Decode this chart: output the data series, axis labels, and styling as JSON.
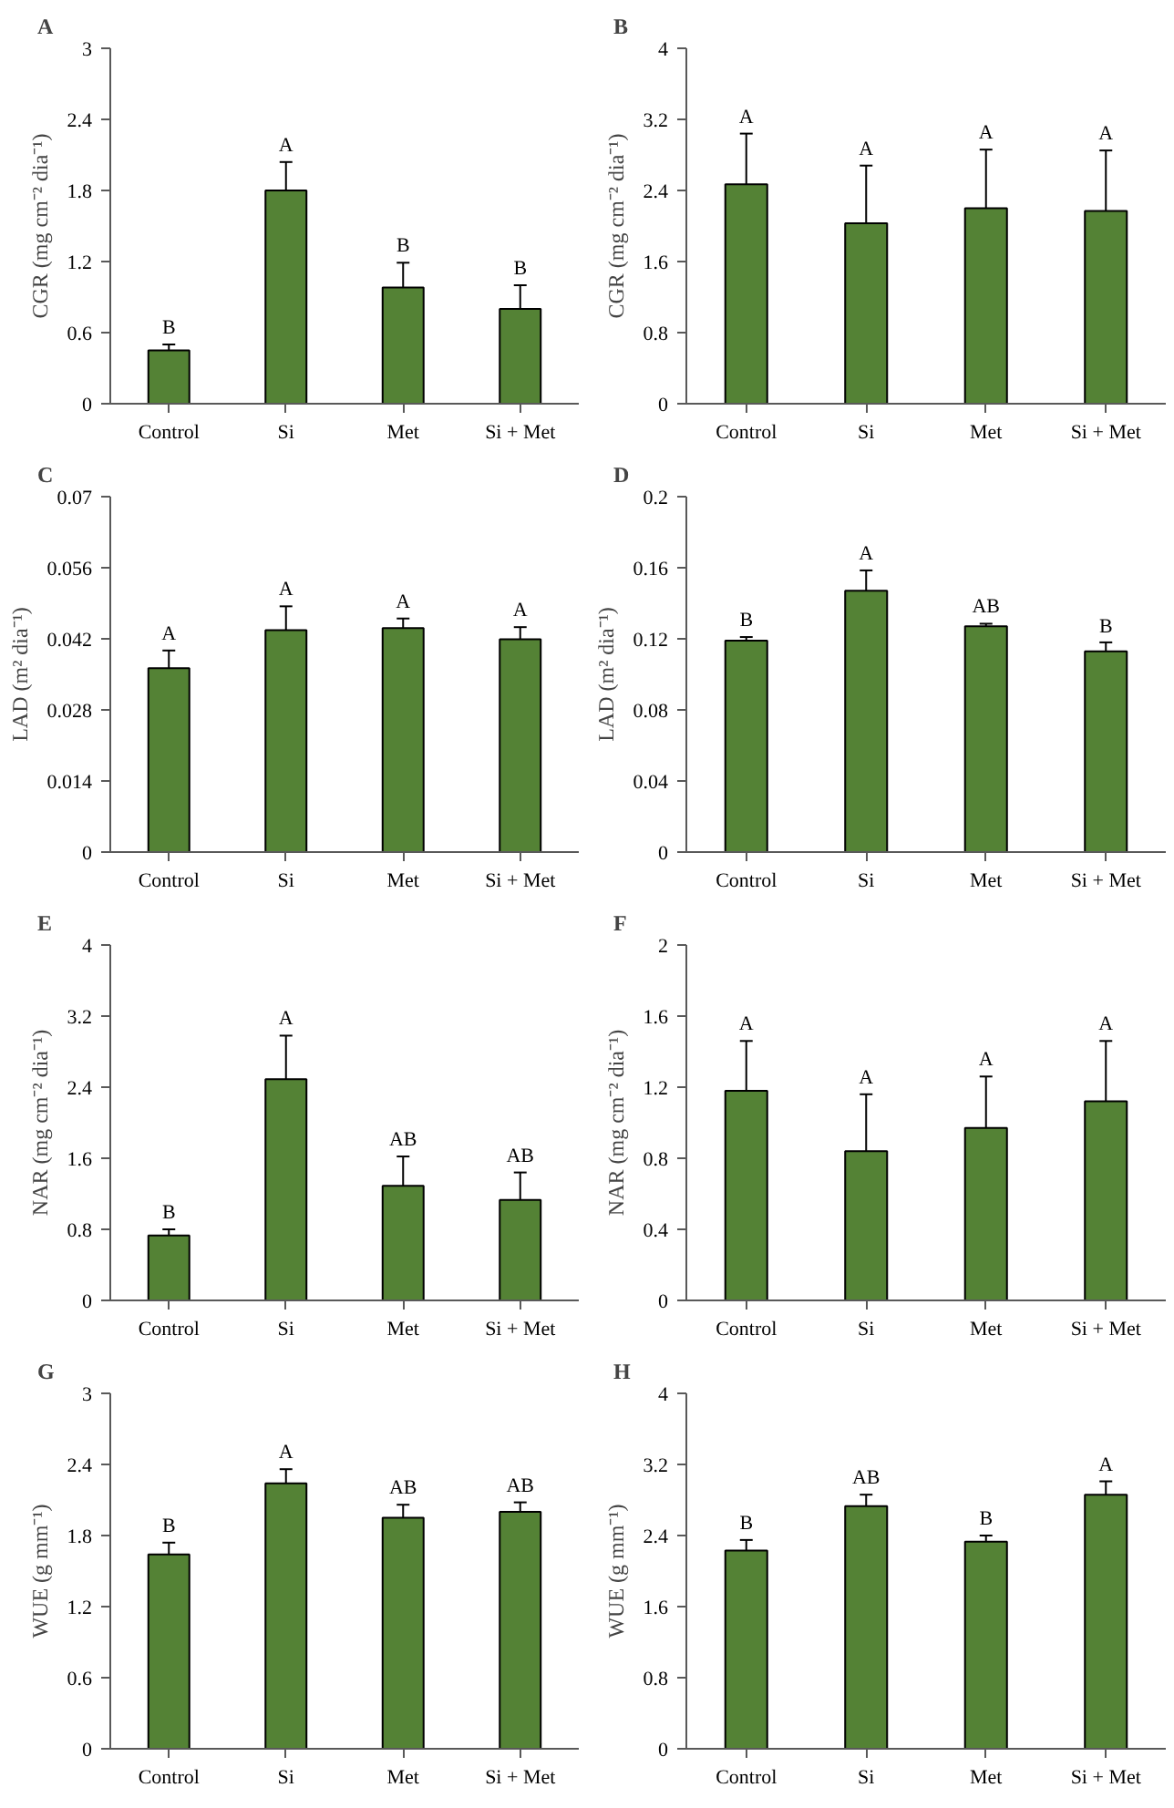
{
  "chart_data": [
    {
      "type": "bar",
      "title": "A",
      "ylabel": "CGR (mg cm⁻² dia⁻¹)",
      "categories": [
        "Control",
        "Si",
        "Met",
        "Si + Met"
      ],
      "values": [
        0.45,
        1.8,
        0.98,
        0.8
      ],
      "errors": [
        0.05,
        0.24,
        0.21,
        0.2
      ],
      "color": "#548235",
      "ylim": [
        0,
        3
      ],
      "yticks": [
        0,
        0.6,
        1.2,
        1.8,
        2.4,
        3
      ],
      "grid": false,
      "annotations": [
        {
          "text": "B",
          "x": "Control",
          "y": 0.5
        },
        {
          "text": "A",
          "x": "Si",
          "y": 2.04
        },
        {
          "text": "B",
          "x": "Met",
          "y": 1.19
        },
        {
          "text": "B",
          "x": "Si + Met",
          "y": 1.0
        }
      ]
    },
    {
      "type": "bar",
      "title": "B",
      "ylabel": "CGR (mg cm⁻² dia⁻¹)",
      "categories": [
        "Control",
        "Si",
        "Met",
        "Si + Met"
      ],
      "values": [
        2.47,
        2.03,
        2.2,
        2.17
      ],
      "errors": [
        0.57,
        0.65,
        0.66,
        0.68
      ],
      "color": "#548235",
      "ylim": [
        0,
        4
      ],
      "yticks": [
        0,
        0.8,
        1.6,
        2.4,
        3.2,
        4
      ],
      "grid": false,
      "annotations": [
        {
          "text": "A",
          "x": "Control",
          "y": 3.04
        },
        {
          "text": "A",
          "x": "Si",
          "y": 2.68
        },
        {
          "text": "A",
          "x": "Met",
          "y": 2.86
        },
        {
          "text": "A",
          "x": "Si + Met",
          "y": 2.85
        }
      ]
    },
    {
      "type": "bar",
      "title": "C",
      "ylabel": "LAD (m² dia⁻¹)",
      "categories": [
        "Control",
        "Si",
        "Met",
        "Si + Met"
      ],
      "values": [
        0.0362,
        0.0437,
        0.0441,
        0.0419
      ],
      "errors": [
        0.0035,
        0.0047,
        0.0019,
        0.0024
      ],
      "color": "#548235",
      "ylim": [
        0,
        0.07
      ],
      "yticks": [
        0,
        0.014,
        0.028,
        0.042,
        0.056,
        0.07
      ],
      "grid": false,
      "annotations": [
        {
          "text": "A",
          "x": "Control",
          "y": 0.0397
        },
        {
          "text": "A",
          "x": "Si",
          "y": 0.0484
        },
        {
          "text": "A",
          "x": "Met",
          "y": 0.046
        },
        {
          "text": "A",
          "x": "Si + Met",
          "y": 0.0443
        }
      ]
    },
    {
      "type": "bar",
      "title": "D",
      "ylabel": "LAD (m² dia⁻¹)",
      "categories": [
        "Control",
        "Si",
        "Met",
        "Si + Met"
      ],
      "values": [
        0.119,
        0.147,
        0.127,
        0.113
      ],
      "errors": [
        0.002,
        0.0115,
        0.0015,
        0.005
      ],
      "color": "#548235",
      "ylim": [
        0,
        0.2
      ],
      "yticks": [
        0,
        0.04,
        0.08,
        0.12,
        0.16,
        0.2
      ],
      "grid": false,
      "annotations": [
        {
          "text": "B",
          "x": "Control",
          "y": 0.121
        },
        {
          "text": "A",
          "x": "Si",
          "y": 0.1585
        },
        {
          "text": "AB",
          "x": "Met",
          "y": 0.1285
        },
        {
          "text": "B",
          "x": "Si + Met",
          "y": 0.1176
        }
      ]
    },
    {
      "type": "bar",
      "title": "E",
      "ylabel": "NAR (mg cm⁻² dia⁻¹)",
      "categories": [
        "Control",
        "Si",
        "Met",
        "Si + Met"
      ],
      "values": [
        0.73,
        2.49,
        1.29,
        1.13
      ],
      "errors": [
        0.07,
        0.49,
        0.33,
        0.31
      ],
      "color": "#548235",
      "ylim": [
        0,
        4
      ],
      "yticks": [
        0,
        0.8,
        1.6,
        2.4,
        3.2,
        4
      ],
      "grid": false,
      "annotations": [
        {
          "text": "B",
          "x": "Control",
          "y": 0.8
        },
        {
          "text": "A",
          "x": "Si",
          "y": 2.98
        },
        {
          "text": "AB",
          "x": "Met",
          "y": 1.62
        },
        {
          "text": "AB",
          "x": "Si + Met",
          "y": 1.44
        }
      ]
    },
    {
      "type": "bar",
      "title": "F",
      "ylabel": "NAR (mg cm⁻² dia⁻¹)",
      "categories": [
        "Control",
        "Si",
        "Met",
        "Si + Met"
      ],
      "values": [
        1.18,
        0.84,
        0.97,
        1.12
      ],
      "errors": [
        0.28,
        0.32,
        0.29,
        0.34
      ],
      "color": "#548235",
      "ylim": [
        0,
        2
      ],
      "yticks": [
        0,
        0.4,
        0.8,
        1.2,
        1.6,
        2
      ],
      "grid": false,
      "annotations": [
        {
          "text": "A",
          "x": "Control",
          "y": 1.46
        },
        {
          "text": "A",
          "x": "Si",
          "y": 1.16
        },
        {
          "text": "A",
          "x": "Met",
          "y": 1.26
        },
        {
          "text": "A",
          "x": "Si + Met",
          "y": 1.46
        }
      ]
    },
    {
      "type": "bar",
      "title": "G",
      "ylabel": "WUE (g mm⁻¹)",
      "categories": [
        "Control",
        "Si",
        "Met",
        "Si + Met"
      ],
      "values": [
        1.64,
        2.24,
        1.95,
        2.0
      ],
      "errors": [
        0.1,
        0.12,
        0.11,
        0.08
      ],
      "color": "#548235",
      "ylim": [
        0,
        3
      ],
      "yticks": [
        0,
        0.6,
        1.2,
        1.8,
        2.4,
        3
      ],
      "grid": false,
      "annotations": [
        {
          "text": "B",
          "x": "Control",
          "y": 1.74
        },
        {
          "text": "A",
          "x": "Si",
          "y": 2.36
        },
        {
          "text": "AB",
          "x": "Met",
          "y": 2.06
        },
        {
          "text": "AB",
          "x": "Si + Met",
          "y": 2.08
        }
      ]
    },
    {
      "type": "bar",
      "title": "H",
      "ylabel": "WUE (g mm⁻¹)",
      "categories": [
        "Control",
        "Si",
        "Met",
        "Si + Met"
      ],
      "values": [
        2.23,
        2.73,
        2.33,
        2.86
      ],
      "errors": [
        0.12,
        0.13,
        0.07,
        0.15
      ],
      "color": "#548235",
      "ylim": [
        0,
        4
      ],
      "yticks": [
        0,
        0.8,
        1.6,
        2.4,
        3.2,
        4
      ],
      "grid": false,
      "annotations": [
        {
          "text": "B",
          "x": "Control",
          "y": 2.35
        },
        {
          "text": "AB",
          "x": "Si",
          "y": 2.86
        },
        {
          "text": "B",
          "x": "Met",
          "y": 2.4
        },
        {
          "text": "A",
          "x": "Si + Met",
          "y": 3.01
        }
      ]
    }
  ]
}
